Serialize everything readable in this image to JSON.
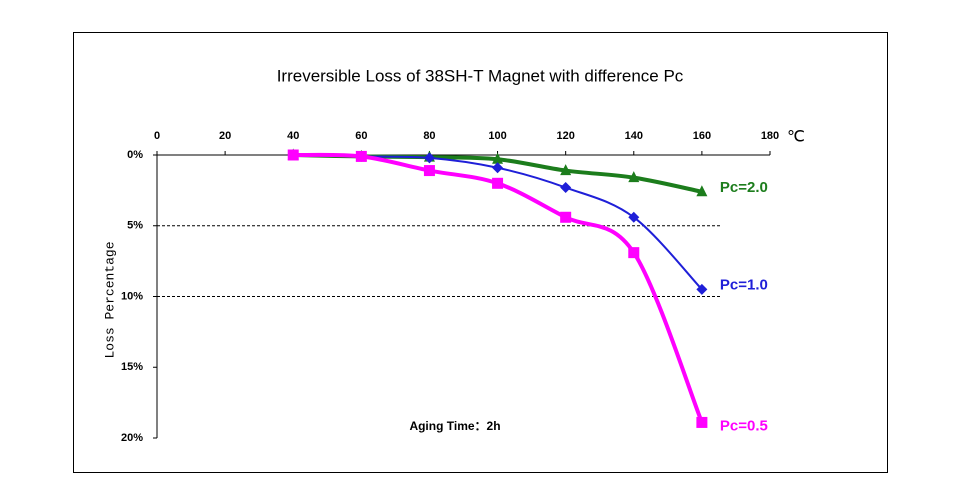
{
  "chart_data": {
    "type": "line",
    "title": "Irreversible Loss of 38SH-T Magnet with difference Pc",
    "x_unit": "℃",
    "y_label": "Loss Percentage",
    "annotation": "Aging Time：2h",
    "x": [
      40,
      60,
      80,
      100,
      120,
      140,
      160
    ],
    "xlim": [
      0,
      180
    ],
    "xticks": [
      0,
      20,
      40,
      60,
      80,
      100,
      120,
      140,
      160,
      180
    ],
    "ylim": [
      0,
      20
    ],
    "yticks": [
      {
        "value": 0,
        "label": "0%"
      },
      {
        "value": 5,
        "label": "5%"
      },
      {
        "value": 10,
        "label": "10%"
      },
      {
        "value": 15,
        "label": "15%"
      },
      {
        "value": 20,
        "label": "20%"
      }
    ],
    "y_inverted": true,
    "hlines": [
      5,
      10
    ],
    "series": [
      {
        "name": "Pc=2.0",
        "color": "#1c7d1c",
        "marker": "triangle",
        "values": [
          0.0,
          0.1,
          0.15,
          0.3,
          1.1,
          1.6,
          2.6
        ]
      },
      {
        "name": "Pc=1.0",
        "color": "#1f1fd8",
        "marker": "diamond",
        "values": [
          0.0,
          0.1,
          0.2,
          0.9,
          2.3,
          4.4,
          9.5
        ]
      },
      {
        "name": "Pc=0.5",
        "color": "#ff00ff",
        "marker": "square",
        "values": [
          0.0,
          0.1,
          1.1,
          2.0,
          4.4,
          6.9,
          18.9
        ]
      }
    ]
  }
}
